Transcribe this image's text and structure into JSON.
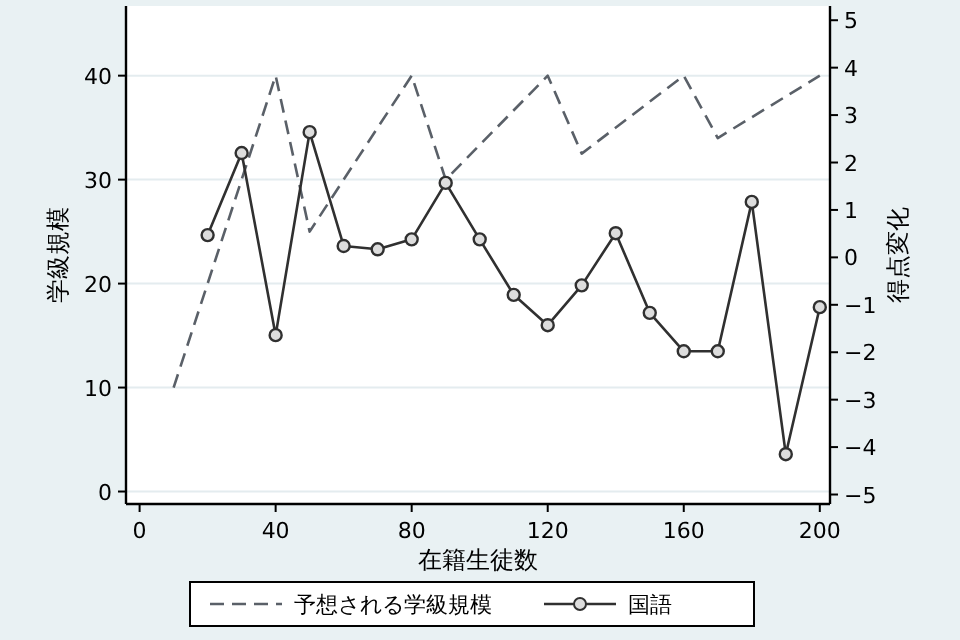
{
  "chart_data": {
    "type": "line",
    "xlabel": "在籍生徒数",
    "ylabel": "学級規模",
    "y2label": "得点変化",
    "xlim": [
      -4,
      203
    ],
    "xticks": [
      0,
      40,
      80,
      120,
      160,
      200
    ],
    "ylim": [
      -1.2,
      46.7
    ],
    "yticks": [
      0,
      10,
      20,
      30,
      40
    ],
    "y2lim": [
      -5.2,
      5.3
    ],
    "y2ticks": [
      -5,
      -4,
      -3,
      -2,
      -1,
      0,
      1,
      2,
      3,
      4,
      5
    ],
    "grid": "y",
    "legend": "bottom",
    "series": [
      {
        "name": "予想される学級規模",
        "color": "#5a6068",
        "line_style": "dashed",
        "marker": "none",
        "x": [
          10,
          40,
          50,
          80,
          90,
          120,
          130,
          160,
          170,
          200
        ],
        "values": [
          10,
          40,
          25,
          40,
          30,
          40,
          32.5,
          40,
          34,
          40
        ]
      },
      {
        "name": "国語",
        "color": "#303030",
        "line_style": "solid",
        "marker": "circle",
        "axis": "y2",
        "x": [
          20,
          30,
          40,
          50,
          60,
          70,
          80,
          90,
          100,
          110,
          120,
          130,
          140,
          150,
          160,
          170,
          180,
          190,
          200
        ],
        "values": [
          0.47,
          2.2,
          -1.64,
          2.64,
          0.24,
          0.17,
          0.38,
          1.57,
          0.38,
          -0.79,
          -1.43,
          -0.59,
          0.51,
          -1.17,
          -1.98,
          -1.98,
          1.17,
          -4.15,
          -1.05
        ]
      }
    ]
  }
}
